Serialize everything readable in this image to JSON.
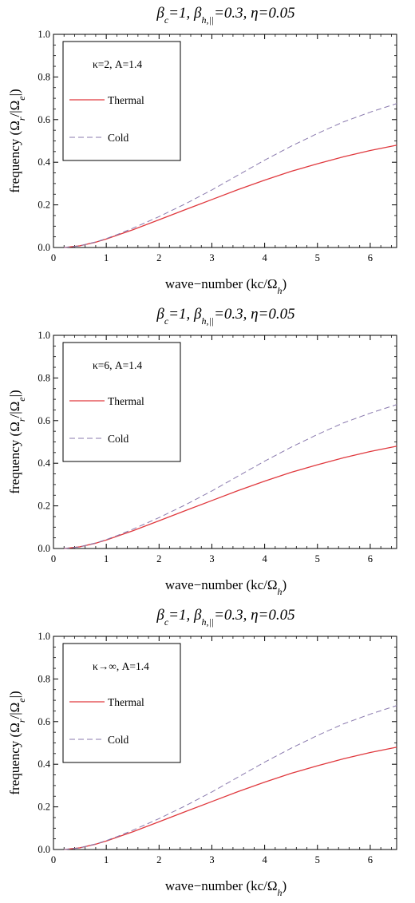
{
  "colors": {
    "thermal": "#e0393e",
    "cold": "#8a7aae",
    "axis": "#000000",
    "background": "#ffffff"
  },
  "chart_data": [
    {
      "type": "line",
      "title_html": "β<tspan baseline-shift=\"sub\" font-size=\"12\">c</tspan>=1, β<tspan baseline-shift=\"sub\" font-size=\"12\">h,||</tspan>=0.3, η=0.05",
      "title": "βc=1, βh,||=0.3, η=0.05",
      "xlabel": "wave−number (kc/Ωh)",
      "ylabel": "frequency (Ωr/|Ωe|)",
      "xlim": [
        0,
        6.5
      ],
      "ylim": [
        0,
        1.0
      ],
      "xticks": [
        0,
        1,
        2,
        3,
        4,
        5,
        6
      ],
      "yticks": [
        0.0,
        0.2,
        0.4,
        0.6,
        0.8,
        1.0
      ],
      "ytick_labels": [
        "0.0",
        "0.2",
        "0.4",
        "0.6",
        "0.8",
        "1.0"
      ],
      "legend_title": "κ=2, A=1.4",
      "legend_placement": "top-left",
      "grid": false,
      "series": [
        {
          "name": "Thermal",
          "style": "solid",
          "x": [
            0.2,
            0.5,
            0.8,
            1.0,
            1.2,
            1.5,
            2.0,
            2.5,
            3.0,
            3.5,
            4.0,
            4.5,
            5.0,
            5.5,
            6.0,
            6.5
          ],
          "y": [
            0.0,
            0.008,
            0.025,
            0.04,
            0.057,
            0.083,
            0.13,
            0.178,
            0.225,
            0.272,
            0.316,
            0.357,
            0.393,
            0.426,
            0.455,
            0.48
          ]
        },
        {
          "name": "Cold",
          "style": "dashed",
          "x": [
            0.2,
            0.5,
            0.8,
            1.0,
            1.2,
            1.5,
            2.0,
            2.5,
            3.0,
            3.5,
            4.0,
            4.5,
            5.0,
            5.5,
            6.0,
            6.5
          ],
          "y": [
            0.0,
            0.008,
            0.026,
            0.042,
            0.06,
            0.09,
            0.145,
            0.205,
            0.27,
            0.34,
            0.41,
            0.475,
            0.535,
            0.59,
            0.635,
            0.675
          ]
        }
      ]
    },
    {
      "type": "line",
      "title_html": "β<tspan baseline-shift=\"sub\" font-size=\"12\">c</tspan>=1, β<tspan baseline-shift=\"sub\" font-size=\"12\">h,||</tspan>=0.3, η=0.05",
      "title": "βc=1, βh,||=0.3, η=0.05",
      "xlabel": "wave−number (kc/Ωh)",
      "ylabel": "frequency (Ωr/|Ωe|)",
      "xlim": [
        0,
        6.5
      ],
      "ylim": [
        0,
        1.0
      ],
      "xticks": [
        0,
        1,
        2,
        3,
        4,
        5,
        6
      ],
      "yticks": [
        0.0,
        0.2,
        0.4,
        0.6,
        0.8,
        1.0
      ],
      "ytick_labels": [
        "0.0",
        "0.2",
        "0.4",
        "0.6",
        "0.8",
        "1.0"
      ],
      "legend_title": "κ=6, A=1.4",
      "legend_placement": "top-left",
      "grid": false,
      "series": [
        {
          "name": "Thermal",
          "style": "solid",
          "x": [
            0.2,
            0.5,
            0.8,
            1.0,
            1.2,
            1.5,
            2.0,
            2.5,
            3.0,
            3.5,
            4.0,
            4.5,
            5.0,
            5.5,
            6.0,
            6.5
          ],
          "y": [
            0.0,
            0.008,
            0.025,
            0.04,
            0.057,
            0.083,
            0.13,
            0.178,
            0.225,
            0.272,
            0.316,
            0.357,
            0.393,
            0.426,
            0.455,
            0.48
          ]
        },
        {
          "name": "Cold",
          "style": "dashed",
          "x": [
            0.2,
            0.5,
            0.8,
            1.0,
            1.2,
            1.5,
            2.0,
            2.5,
            3.0,
            3.5,
            4.0,
            4.5,
            5.0,
            5.5,
            6.0,
            6.5
          ],
          "y": [
            0.0,
            0.008,
            0.026,
            0.042,
            0.06,
            0.09,
            0.145,
            0.205,
            0.27,
            0.34,
            0.41,
            0.475,
            0.535,
            0.59,
            0.635,
            0.675
          ]
        }
      ]
    },
    {
      "type": "line",
      "title_html": "β<tspan baseline-shift=\"sub\" font-size=\"12\">c</tspan>=1, β<tspan baseline-shift=\"sub\" font-size=\"12\">h,||</tspan>=0.3, η=0.05",
      "title": "βc=1, βh,||=0.3, η=0.05",
      "xlabel": "wave−number (kc/Ωh)",
      "ylabel": "frequency (Ωr/|Ωe|)",
      "xlim": [
        0,
        6.5
      ],
      "ylim": [
        0,
        1.0
      ],
      "xticks": [
        0,
        1,
        2,
        3,
        4,
        5,
        6
      ],
      "yticks": [
        0.0,
        0.2,
        0.4,
        0.6,
        0.8,
        1.0
      ],
      "ytick_labels": [
        "0.0",
        "0.2",
        "0.4",
        "0.6",
        "0.8",
        "1.0"
      ],
      "legend_title": "κ→∞, A=1.4",
      "legend_placement": "top-left",
      "grid": false,
      "series": [
        {
          "name": "Thermal",
          "style": "solid",
          "x": [
            0.2,
            0.5,
            0.8,
            1.0,
            1.2,
            1.5,
            2.0,
            2.5,
            3.0,
            3.5,
            4.0,
            4.5,
            5.0,
            5.5,
            6.0,
            6.5
          ],
          "y": [
            0.0,
            0.008,
            0.025,
            0.04,
            0.057,
            0.083,
            0.13,
            0.178,
            0.225,
            0.272,
            0.316,
            0.357,
            0.393,
            0.426,
            0.455,
            0.48
          ]
        },
        {
          "name": "Cold",
          "style": "dashed",
          "x": [
            0.2,
            0.5,
            0.8,
            1.0,
            1.2,
            1.5,
            2.0,
            2.5,
            3.0,
            3.5,
            4.0,
            4.5,
            5.0,
            5.5,
            6.0,
            6.5
          ],
          "y": [
            0.0,
            0.008,
            0.026,
            0.042,
            0.06,
            0.09,
            0.145,
            0.205,
            0.27,
            0.34,
            0.41,
            0.475,
            0.535,
            0.59,
            0.635,
            0.675
          ]
        }
      ]
    }
  ]
}
